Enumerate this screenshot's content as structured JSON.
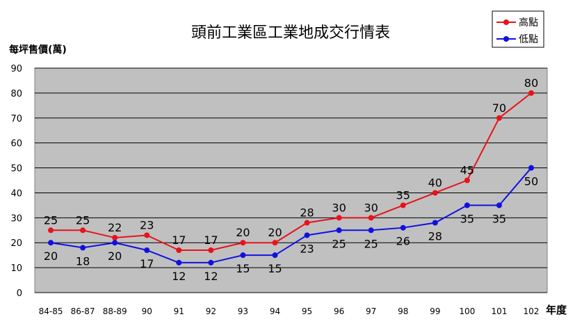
{
  "chart_data": {
    "type": "line",
    "title": "頭前工業區工業地成交行情表",
    "ylabel": "每坪售價(萬)",
    "xlabel": "年度",
    "categories": [
      "84-85",
      "86-87",
      "88-89",
      "90",
      "91",
      "92",
      "93",
      "94",
      "95",
      "96",
      "97",
      "98",
      "99",
      "100",
      "101",
      "102"
    ],
    "ylim": [
      0,
      90
    ],
    "yticks": [
      0,
      10,
      20,
      30,
      40,
      50,
      60,
      70,
      80,
      90
    ],
    "grid": true,
    "legend_position": "top-right",
    "series": [
      {
        "name": "高點",
        "color": "#e8121a",
        "values": [
          25,
          25,
          22,
          23,
          17,
          17,
          20,
          20,
          28,
          30,
          30,
          35,
          40,
          45,
          70,
          80
        ]
      },
      {
        "name": "低點",
        "color": "#1010e0",
        "values": [
          20,
          18,
          20,
          17,
          12,
          12,
          15,
          15,
          23,
          25,
          25,
          26,
          28,
          35,
          35,
          50
        ]
      }
    ]
  },
  "colors": {
    "plot_background": "#c0c0c0",
    "gridline": "#000000"
  }
}
